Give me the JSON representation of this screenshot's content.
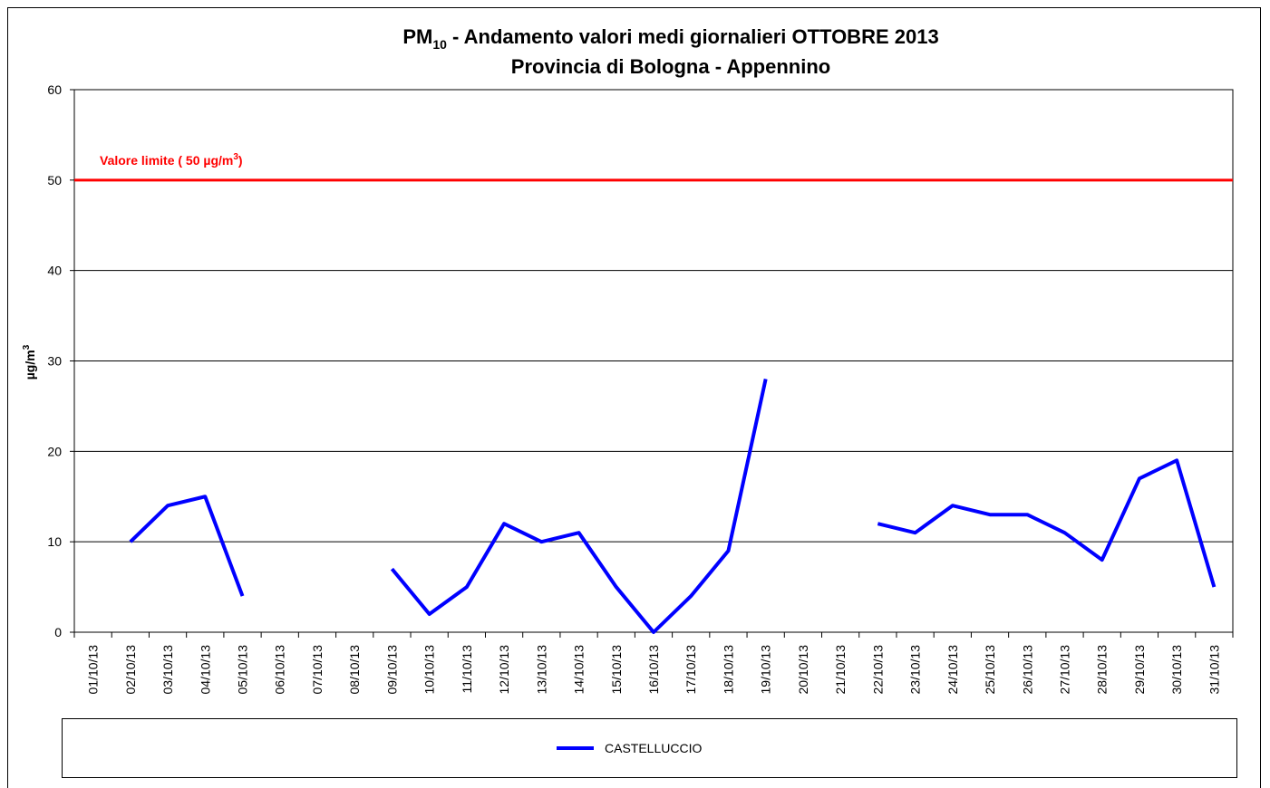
{
  "chart_data": {
    "type": "line",
    "title": [
      "PM",
      "10",
      " - Andamento valori medi giornalieri OTTOBRE 2013"
    ],
    "subtitle": "Provincia di Bologna - Appennino",
    "y_label": [
      "µg/m",
      "3"
    ],
    "categories": [
      "01/10/13",
      "02/10/13",
      "03/10/13",
      "04/10/13",
      "05/10/13",
      "06/10/13",
      "07/10/13",
      "08/10/13",
      "09/10/13",
      "10/10/13",
      "11/10/13",
      "12/10/13",
      "13/10/13",
      "14/10/13",
      "15/10/13",
      "16/10/13",
      "17/10/13",
      "18/10/13",
      "19/10/13",
      "20/10/13",
      "21/10/13",
      "22/10/13",
      "23/10/13",
      "24/10/13",
      "25/10/13",
      "26/10/13",
      "27/10/13",
      "28/10/13",
      "29/10/13",
      "30/10/13",
      "31/10/13"
    ],
    "series": [
      {
        "name": "CASTELLUCCIO",
        "color": "#0000ff",
        "values": [
          null,
          10,
          14,
          15,
          4,
          null,
          null,
          null,
          7,
          2,
          5,
          12,
          10,
          11,
          5,
          0,
          4,
          9,
          28,
          null,
          null,
          12,
          11,
          14,
          13,
          13,
          11,
          8,
          17,
          19,
          5
        ]
      }
    ],
    "reference_line": {
      "value": 50,
      "color": "#ff0000",
      "label": [
        "Valore limite  ( 50 µg/m",
        "3",
        ")"
      ]
    },
    "ylim": [
      0,
      60
    ],
    "yticks": [
      0,
      10,
      20,
      30,
      40,
      50,
      60
    ],
    "grid": true
  }
}
